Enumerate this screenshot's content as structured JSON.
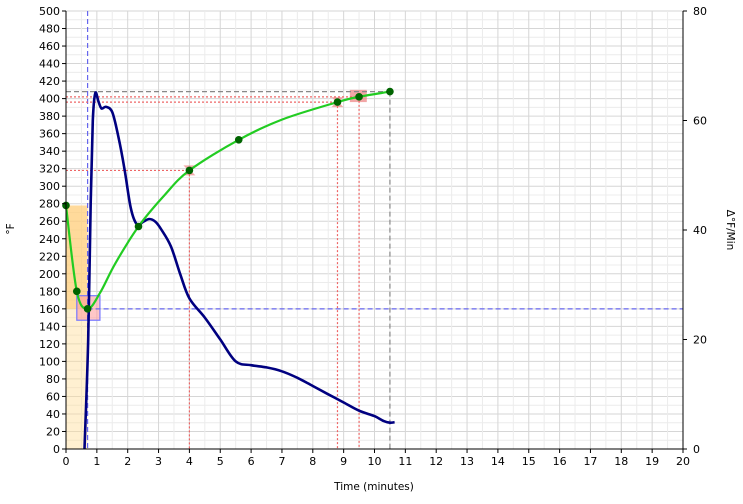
{
  "chart_data": {
    "type": "line",
    "xlabel": "Time (minutes)",
    "ylabel_left": "°F",
    "ylabel_right": "Δ°F/Min",
    "xlim": [
      0,
      20
    ],
    "ylim_left": [
      0,
      500
    ],
    "ylim_right": [
      0,
      80
    ],
    "x_ticks": [
      "0",
      "1",
      "2",
      "3",
      "4",
      "5",
      "6",
      "7",
      "8",
      "9",
      "10",
      "11",
      "12",
      "13",
      "14",
      "15",
      "16",
      "17",
      "18",
      "19",
      "20"
    ],
    "y_ticks_left": [
      "0",
      "20",
      "40",
      "60",
      "80",
      "100",
      "120",
      "140",
      "160",
      "180",
      "200",
      "220",
      "240",
      "260",
      "280",
      "300",
      "320",
      "340",
      "360",
      "380",
      "400",
      "420",
      "440",
      "460",
      "480",
      "500"
    ],
    "y_ticks_right": [
      "0",
      "20",
      "40",
      "60",
      "80"
    ],
    "grid": true,
    "colors": {
      "temperature": "#22cc22",
      "temperature_markers": "#006400",
      "rate": "#000080",
      "crosshair": "#6666ee",
      "event_lines": "#ee6666",
      "end_lines": "#888888",
      "charge_fill": "#ffdd99",
      "turning_point_box": "#7777ff",
      "event_box": "#ee8888"
    },
    "series": [
      {
        "axis": "left",
        "x": [
          0,
          0.35,
          0.7,
          1.1,
          1.6,
          2.35,
          3.2,
          4.0,
          5.6,
          7.0,
          8.8,
          9.5,
          10.5
        ],
        "y": [
          278,
          180,
          160,
          178,
          212,
          254,
          290,
          318,
          353,
          376,
          396,
          402,
          408
        ],
        "markers": [
          {
            "x": 0,
            "y": 278
          },
          {
            "x": 0.35,
            "y": 180
          },
          {
            "x": 0.7,
            "y": 160
          },
          {
            "x": 2.35,
            "y": 254
          },
          {
            "x": 4.0,
            "y": 318
          },
          {
            "x": 5.6,
            "y": 353
          },
          {
            "x": 8.8,
            "y": 396
          },
          {
            "x": 9.5,
            "y": 402
          },
          {
            "x": 10.5,
            "y": 408
          }
        ]
      },
      {
        "axis": "right",
        "x": [
          0.6,
          0.72,
          0.8,
          0.87,
          0.95,
          1.05,
          1.15,
          1.3,
          1.5,
          1.7,
          1.9,
          2.1,
          2.3,
          2.5,
          2.7,
          2.9,
          3.1,
          3.4,
          3.7,
          4.0,
          4.5,
          5.0,
          5.5,
          6.0,
          6.5,
          7.0,
          7.5,
          8.0,
          8.5,
          9.0,
          9.5,
          10.0,
          10.3,
          10.5,
          10.65
        ],
        "y": [
          0,
          20,
          45,
          60,
          65,
          63.5,
          62.2,
          62.5,
          61.5,
          57,
          51,
          44,
          41,
          41.5,
          42,
          41.5,
          40,
          37,
          32,
          27.5,
          24,
          20,
          16,
          15.3,
          14.9,
          14.2,
          13,
          11.5,
          10,
          8.5,
          7,
          6,
          5.1,
          4.8,
          4.9
        ]
      }
    ],
    "reference_lines": [
      {
        "kind": "horizontal",
        "axis": "left",
        "y": 160,
        "from_x": 0.7,
        "to_x": 20,
        "style": "dashed-blue"
      },
      {
        "kind": "vertical",
        "x": 0.7,
        "style": "dashed-blue"
      },
      {
        "kind": "horizontal",
        "axis": "left",
        "y": 318,
        "from_x": 0,
        "to_x": 4.0,
        "style": "dotted-red"
      },
      {
        "kind": "vertical",
        "x": 4.0,
        "to_y": 318,
        "style": "dotted-red"
      },
      {
        "kind": "horizontal",
        "axis": "left",
        "y": 396,
        "from_x": 0,
        "to_x": 8.8,
        "style": "dotted-red"
      },
      {
        "kind": "vertical",
        "x": 8.8,
        "to_y": 396,
        "style": "dotted-red"
      },
      {
        "kind": "horizontal",
        "axis": "left",
        "y": 402,
        "from_x": 0,
        "to_x": 9.5,
        "style": "dotted-red"
      },
      {
        "kind": "vertical",
        "x": 9.5,
        "to_y": 402,
        "style": "dotted-red"
      },
      {
        "kind": "horizontal",
        "axis": "left",
        "y": 408,
        "from_x": 0,
        "to_x": 10.5,
        "style": "dashed-gray"
      },
      {
        "kind": "vertical",
        "x": 10.5,
        "to_y": 408,
        "style": "dashed-gray"
      }
    ],
    "highlight_regions": [
      {
        "kind": "charge",
        "x": [
          0,
          0.7
        ],
        "y": [
          0,
          278
        ]
      },
      {
        "kind": "turning-point-box",
        "x": [
          0.35,
          1.1
        ],
        "y": [
          147,
          175
        ]
      },
      {
        "kind": "event-marker",
        "x": 4.0,
        "y": 318
      },
      {
        "kind": "event-marker",
        "x": 8.8,
        "y": 396
      },
      {
        "kind": "event-box",
        "x": [
          9.2,
          9.75
        ],
        "y": [
          396,
          410
        ]
      }
    ]
  }
}
